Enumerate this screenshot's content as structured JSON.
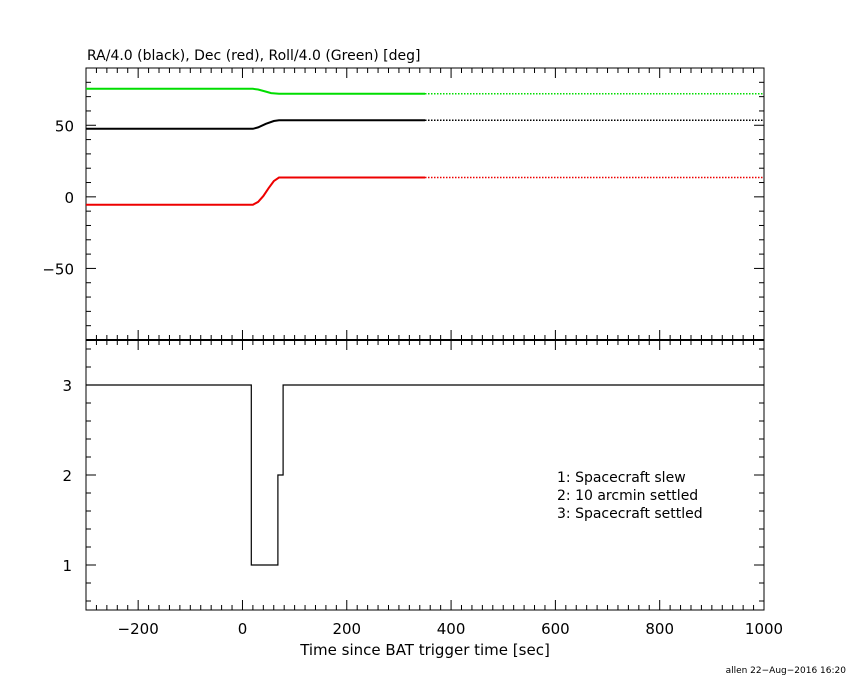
{
  "chart_data": [
    {
      "type": "line",
      "title": "RA/4.0 (black), Dec (red), Roll/4.0 (Green) [deg]",
      "xlim": [
        -300,
        1000
      ],
      "ylim": [
        -100,
        90
      ],
      "y_ticks": [
        50,
        0,
        -50
      ],
      "y_tick_labels": [
        "50",
        "0",
        "−50"
      ],
      "grid": false,
      "series": [
        {
          "color": "#00dd00",
          "solid": [
            [
              -300,
              75.5
            ],
            [
              20,
              75.5
            ],
            [
              30,
              75.0
            ],
            [
              45,
              73.5
            ],
            [
              55,
              72.5
            ],
            [
              70,
              72.0
            ],
            [
              350,
              72.0
            ]
          ],
          "dotted": [
            [
              350,
              72.0
            ],
            [
              1000,
              72.0
            ]
          ]
        },
        {
          "color": "#000000",
          "solid": [
            [
              -300,
              47.5
            ],
            [
              20,
              47.5
            ],
            [
              30,
              48.5
            ],
            [
              45,
              51.0
            ],
            [
              60,
              53.0
            ],
            [
              70,
              53.5
            ],
            [
              350,
              53.5
            ]
          ],
          "dotted": [
            [
              350,
              53.5
            ],
            [
              1000,
              53.5
            ]
          ]
        },
        {
          "color": "#ee0000",
          "solid": [
            [
              -300,
              -5.5
            ],
            [
              20,
              -5.5
            ],
            [
              30,
              -3.5
            ],
            [
              40,
              0.5
            ],
            [
              50,
              6.0
            ],
            [
              60,
              11.0
            ],
            [
              70,
              13.5
            ],
            [
              350,
              13.5
            ]
          ],
          "dotted": [
            [
              350,
              13.5
            ],
            [
              1000,
              13.5
            ]
          ]
        }
      ]
    },
    {
      "type": "line",
      "xlim": [
        -300,
        1000
      ],
      "ylim": [
        0.5,
        3.5
      ],
      "y_ticks": [
        3,
        2,
        1
      ],
      "y_tick_labels": [
        "3",
        "2",
        "1"
      ],
      "x_ticks": [
        -200,
        0,
        200,
        400,
        600,
        800,
        1000
      ],
      "x_tick_labels": [
        "−200",
        "0",
        "200",
        "400",
        "600",
        "800",
        "1000"
      ],
      "xlabel": "Time since BAT trigger time [sec]",
      "grid": false,
      "legend_lines": [
        "1: Spacecraft slew",
        "2: 10 arcmin settled",
        "3: Spacecraft settled"
      ],
      "legend_position": "lower-right",
      "series": [
        {
          "color": "#000000",
          "step": [
            [
              -300,
              3
            ],
            [
              17,
              3
            ],
            [
              17,
              1
            ],
            [
              68,
              1
            ],
            [
              68,
              2
            ],
            [
              78,
              2
            ],
            [
              78,
              3
            ],
            [
              1000,
              3
            ]
          ]
        }
      ]
    }
  ],
  "footer": {
    "stamp": "allen 22−Aug−2016 16:20"
  }
}
